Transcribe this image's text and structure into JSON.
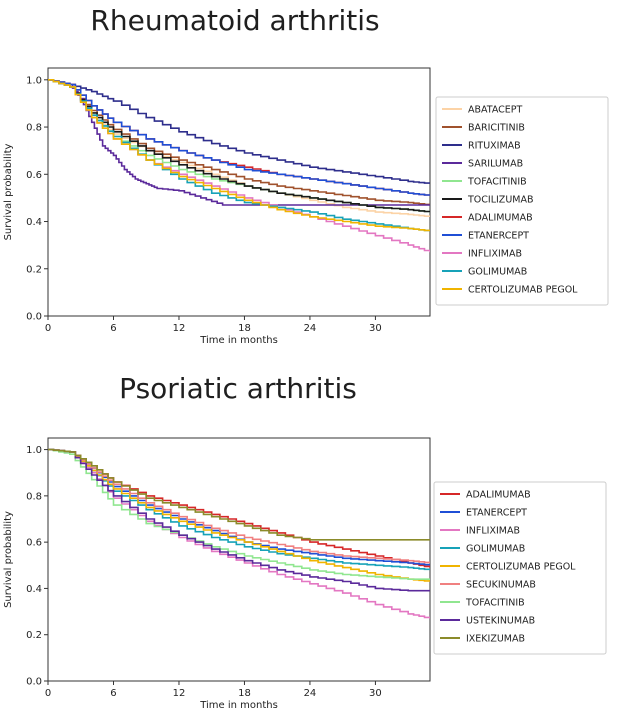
{
  "chart_data": [
    {
      "type": "line",
      "title": "Rheumatoid arthritis",
      "xlabel": "Time in months",
      "ylabel": "Survival probability",
      "xlim": [
        0,
        35
      ],
      "ylim": [
        0,
        1.05
      ],
      "xticks": [
        0,
        6,
        12,
        18,
        24,
        30
      ],
      "yticks": [
        0.0,
        0.2,
        0.4,
        0.6,
        0.8,
        1.0
      ],
      "legend_position": "right",
      "series": [
        {
          "name": "ABATACEPT",
          "color": "#fcd3a6",
          "x": [
            0,
            2,
            4,
            6,
            9,
            12,
            15,
            18,
            21,
            24,
            27,
            30,
            33,
            35
          ],
          "y": [
            1,
            0.97,
            0.85,
            0.77,
            0.7,
            0.65,
            0.6,
            0.55,
            0.52,
            0.49,
            0.46,
            0.44,
            0.43,
            0.42
          ]
        },
        {
          "name": "BARICITINIB",
          "color": "#a0522d",
          "x": [
            0,
            2,
            4,
            6,
            9,
            12,
            15,
            18,
            21,
            24,
            27,
            30,
            33,
            35
          ],
          "y": [
            1,
            0.97,
            0.87,
            0.79,
            0.71,
            0.66,
            0.62,
            0.58,
            0.55,
            0.53,
            0.51,
            0.49,
            0.48,
            0.47
          ]
        },
        {
          "name": "RITUXIMAB",
          "color": "#2e2e8c",
          "x": [
            0,
            2,
            4,
            6,
            9,
            12,
            15,
            18,
            21,
            24,
            27,
            30,
            33,
            35
          ],
          "y": [
            1,
            0.98,
            0.95,
            0.91,
            0.84,
            0.78,
            0.73,
            0.69,
            0.66,
            0.63,
            0.61,
            0.59,
            0.57,
            0.56
          ]
        },
        {
          "name": "SARILUMAB",
          "color": "#5b2a9b",
          "x": [
            0,
            2,
            3,
            4,
            5,
            6,
            7,
            8,
            9,
            10,
            12,
            14,
            16,
            18,
            20,
            24,
            28,
            32,
            35
          ],
          "y": [
            1,
            0.98,
            0.92,
            0.82,
            0.72,
            0.68,
            0.62,
            0.58,
            0.56,
            0.54,
            0.53,
            0.5,
            0.47,
            0.47,
            0.47,
            0.47,
            0.47,
            0.47,
            0.47
          ]
        },
        {
          "name": "TOFACITINIB",
          "color": "#90e690",
          "x": [
            0,
            2,
            4,
            6,
            9,
            12,
            15,
            18,
            21,
            24,
            27,
            30,
            33,
            35
          ],
          "y": [
            1,
            0.97,
            0.85,
            0.76,
            0.68,
            0.62,
            0.58,
            0.55,
            0.52,
            0.5,
            0.48,
            0.46,
            0.45,
            0.44
          ]
        },
        {
          "name": "TOCILIZUMAB",
          "color": "#1a1a1a",
          "x": [
            0,
            2,
            4,
            6,
            9,
            12,
            15,
            18,
            21,
            24,
            27,
            30,
            33,
            35
          ],
          "y": [
            1,
            0.97,
            0.86,
            0.78,
            0.7,
            0.64,
            0.59,
            0.55,
            0.52,
            0.5,
            0.48,
            0.46,
            0.45,
            0.44
          ]
        },
        {
          "name": "ADALIMUMAB",
          "color": "#d62728",
          "x": [
            0,
            2,
            4,
            6,
            9,
            12,
            15,
            18,
            21,
            24,
            27,
            30,
            33,
            35
          ],
          "y": [
            1,
            0.98,
            0.89,
            0.82,
            0.75,
            0.7,
            0.66,
            0.63,
            0.6,
            0.58,
            0.56,
            0.54,
            0.52,
            0.51
          ]
        },
        {
          "name": "ETANERCEPT",
          "color": "#1f4fd6",
          "x": [
            0,
            2,
            4,
            6,
            9,
            12,
            15,
            18,
            21,
            24,
            27,
            30,
            33,
            35
          ],
          "y": [
            1,
            0.98,
            0.89,
            0.82,
            0.75,
            0.7,
            0.66,
            0.62,
            0.6,
            0.58,
            0.56,
            0.54,
            0.52,
            0.51
          ]
        },
        {
          "name": "INFLIXIMAB",
          "color": "#e377c2",
          "x": [
            0,
            2,
            4,
            6,
            9,
            12,
            15,
            18,
            21,
            24,
            27,
            30,
            33,
            35
          ],
          "y": [
            1,
            0.97,
            0.84,
            0.75,
            0.66,
            0.6,
            0.55,
            0.5,
            0.46,
            0.42,
            0.38,
            0.34,
            0.3,
            0.27
          ]
        },
        {
          "name": "GOLIMUMAB",
          "color": "#17a2b8",
          "x": [
            0,
            2,
            4,
            6,
            9,
            12,
            15,
            18,
            21,
            24,
            27,
            30,
            33,
            35
          ],
          "y": [
            1,
            0.97,
            0.85,
            0.76,
            0.66,
            0.58,
            0.52,
            0.48,
            0.46,
            0.44,
            0.41,
            0.39,
            0.37,
            0.36
          ]
        },
        {
          "name": "CERTOLIZUMAB PEGOL",
          "color": "#f0b400",
          "x": [
            0,
            2,
            4,
            6,
            9,
            12,
            15,
            18,
            21,
            24,
            27,
            30,
            33,
            35
          ],
          "y": [
            1,
            0.97,
            0.84,
            0.75,
            0.66,
            0.59,
            0.54,
            0.49,
            0.45,
            0.42,
            0.4,
            0.38,
            0.37,
            0.36
          ]
        }
      ]
    },
    {
      "type": "line",
      "title": "Psoriatic arthritis",
      "xlabel": "Time in months",
      "ylabel": "Survival probability",
      "xlim": [
        0,
        35
      ],
      "ylim": [
        0,
        1.05
      ],
      "xticks": [
        0,
        6,
        12,
        18,
        24,
        30
      ],
      "yticks": [
        0.0,
        0.2,
        0.4,
        0.6,
        0.8,
        1.0
      ],
      "legend_position": "right",
      "series": [
        {
          "name": "ADALIMUMAB",
          "color": "#d62728",
          "x": [
            0,
            2,
            4,
            6,
            9,
            12,
            15,
            18,
            21,
            24,
            27,
            30,
            33,
            35
          ],
          "y": [
            1,
            0.99,
            0.93,
            0.86,
            0.8,
            0.76,
            0.72,
            0.68,
            0.64,
            0.6,
            0.57,
            0.54,
            0.51,
            0.49
          ]
        },
        {
          "name": "ETANERCEPT",
          "color": "#1f4fd6",
          "x": [
            0,
            2,
            4,
            6,
            9,
            12,
            15,
            18,
            21,
            24,
            27,
            30,
            33,
            35
          ],
          "y": [
            1,
            0.99,
            0.92,
            0.84,
            0.76,
            0.7,
            0.65,
            0.6,
            0.57,
            0.55,
            0.53,
            0.52,
            0.51,
            0.5
          ]
        },
        {
          "name": "INFLIXIMAB",
          "color": "#e377c2",
          "x": [
            0,
            2,
            4,
            6,
            9,
            12,
            15,
            18,
            21,
            24,
            27,
            30,
            33,
            35
          ],
          "y": [
            1,
            0.99,
            0.9,
            0.79,
            0.69,
            0.62,
            0.56,
            0.51,
            0.46,
            0.42,
            0.38,
            0.33,
            0.29,
            0.27
          ]
        },
        {
          "name": "GOLIMUMAB",
          "color": "#17a2b8",
          "x": [
            0,
            2,
            4,
            6,
            9,
            12,
            15,
            18,
            21,
            24,
            27,
            30,
            33,
            35
          ],
          "y": [
            1,
            0.99,
            0.91,
            0.82,
            0.74,
            0.67,
            0.62,
            0.58,
            0.55,
            0.53,
            0.51,
            0.5,
            0.49,
            0.48
          ]
        },
        {
          "name": "CERTOLIZUMAB PEGOL",
          "color": "#f0b400",
          "x": [
            0,
            2,
            4,
            6,
            9,
            12,
            15,
            18,
            21,
            24,
            27,
            30,
            33,
            35
          ],
          "y": [
            1,
            0.99,
            0.91,
            0.83,
            0.75,
            0.69,
            0.64,
            0.6,
            0.56,
            0.52,
            0.49,
            0.46,
            0.44,
            0.43
          ]
        },
        {
          "name": "SECUKINUMAB",
          "color": "#f08080",
          "x": [
            0,
            2,
            4,
            6,
            9,
            12,
            15,
            18,
            21,
            24,
            27,
            30,
            33,
            35
          ],
          "y": [
            1,
            0.99,
            0.92,
            0.85,
            0.77,
            0.71,
            0.66,
            0.62,
            0.59,
            0.56,
            0.54,
            0.53,
            0.52,
            0.51
          ]
        },
        {
          "name": "TOFACITINIB",
          "color": "#90e690",
          "x": [
            0,
            2,
            4,
            6,
            9,
            12,
            15,
            18,
            21,
            24,
            27,
            30,
            33,
            35
          ],
          "y": [
            1,
            0.98,
            0.87,
            0.76,
            0.68,
            0.63,
            0.58,
            0.54,
            0.51,
            0.48,
            0.46,
            0.45,
            0.44,
            0.44
          ]
        },
        {
          "name": "USTEKINUMAB",
          "color": "#5b2a9b",
          "x": [
            0,
            2,
            4,
            6,
            9,
            12,
            15,
            18,
            21,
            24,
            27,
            30,
            33,
            35
          ],
          "y": [
            1,
            0.99,
            0.89,
            0.8,
            0.7,
            0.63,
            0.57,
            0.52,
            0.48,
            0.45,
            0.43,
            0.4,
            0.39,
            0.39
          ]
        },
        {
          "name": "IXEKIZUMAB",
          "color": "#8b8b2a",
          "x": [
            0,
            2,
            4,
            6,
            9,
            12,
            15,
            18,
            21,
            24,
            27,
            30,
            33,
            35
          ],
          "y": [
            1,
            0.99,
            0.93,
            0.86,
            0.79,
            0.75,
            0.71,
            0.67,
            0.63,
            0.61,
            0.61,
            0.61,
            0.61,
            0.61
          ]
        }
      ]
    }
  ]
}
